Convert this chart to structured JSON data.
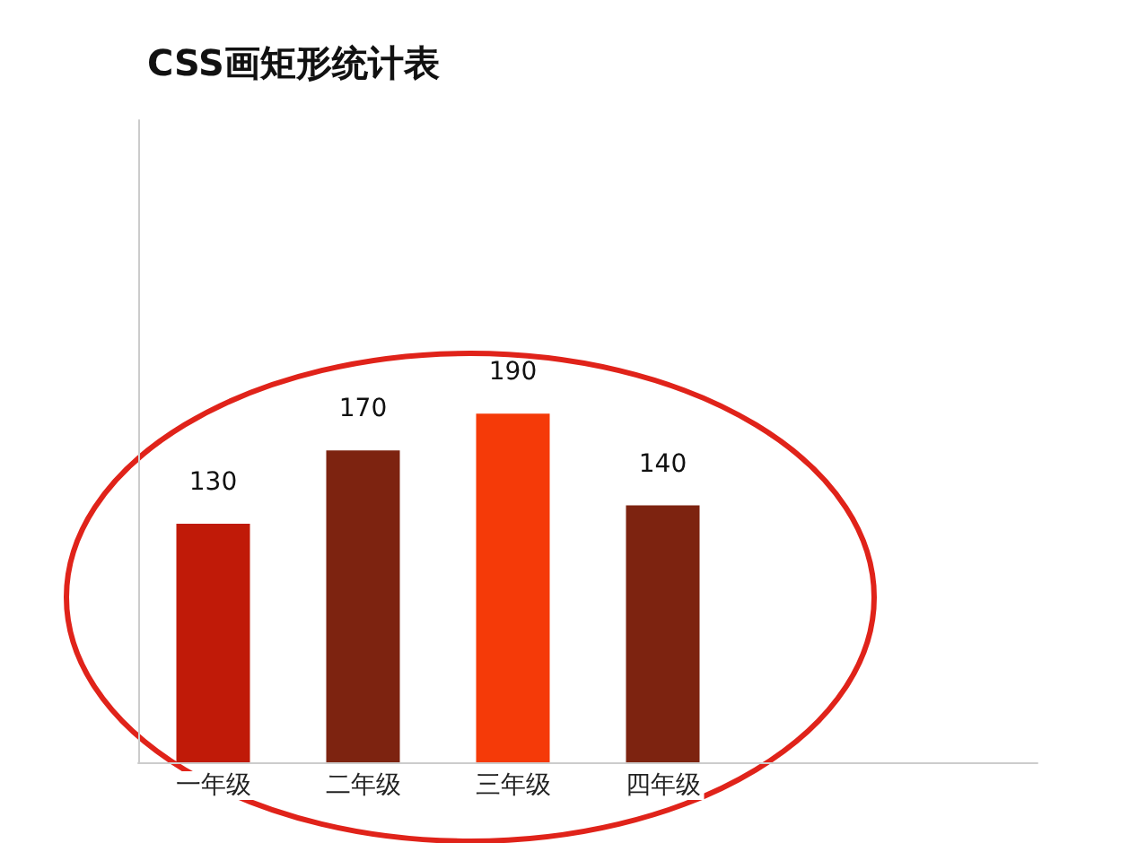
{
  "chart_data": {
    "type": "bar",
    "title": "CSS画矩形统计表",
    "categories": [
      "一年级",
      "二年级",
      "三年级",
      "四年级"
    ],
    "values": [
      130,
      170,
      190,
      140
    ],
    "colors": [
      "#c01a08",
      "#7d2310",
      "#f53a08",
      "#7d2310"
    ],
    "ylim": [
      0,
      350
    ],
    "data_labels": true
  }
}
